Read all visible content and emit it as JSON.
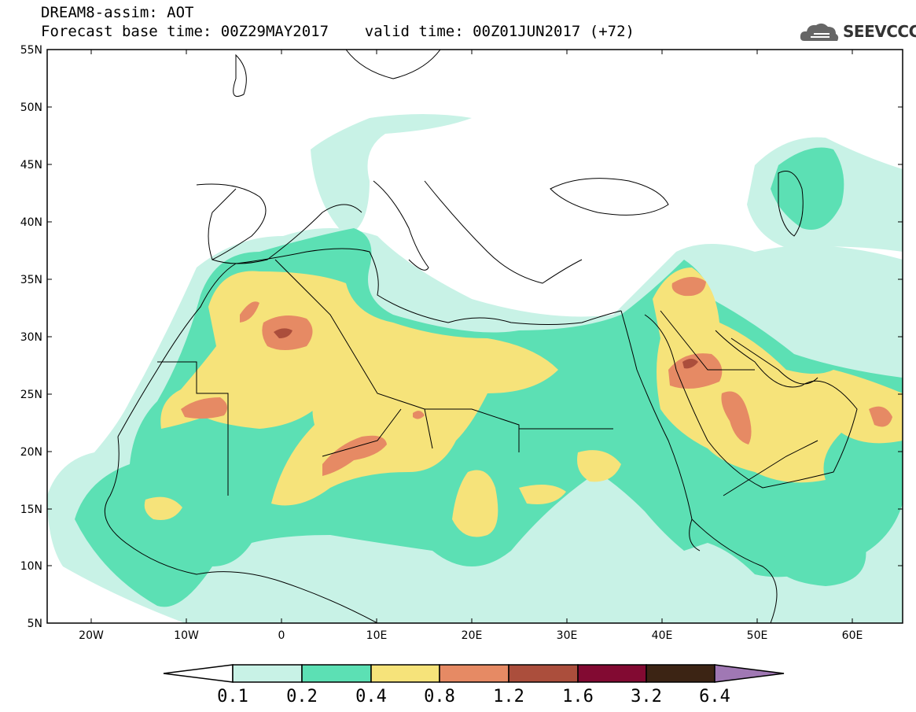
{
  "header": {
    "line1": "DREAM8-assim: AOT",
    "line2": "Forecast base time: 00Z29MAY2017    valid time: 00Z01JUN2017 (+72)"
  },
  "logo": {
    "text": "SEEVCCC",
    "icon": "cloud-icon"
  },
  "map": {
    "lat_labels": [
      "55N",
      "50N",
      "45N",
      "40N",
      "35N",
      "30N",
      "25N",
      "20N",
      "15N",
      "10N",
      "5N"
    ],
    "lon_labels": [
      "20W",
      "10W",
      "0",
      "10E",
      "20E",
      "30E",
      "40E",
      "50E",
      "60E"
    ],
    "lon_range": [
      -25,
      65
    ],
    "lat_range": [
      5,
      55
    ]
  },
  "colorbar": {
    "labels": [
      "0.1",
      "0.2",
      "0.4",
      "0.8",
      "1.2",
      "1.6",
      "3.2",
      "6.4"
    ],
    "colors": [
      "#ffffff",
      "#c8f2e6",
      "#5ce0b4",
      "#f6e37a",
      "#e68a64",
      "#ab4e3c",
      "#820a32",
      "#3c2414",
      "#a078b4"
    ]
  }
}
